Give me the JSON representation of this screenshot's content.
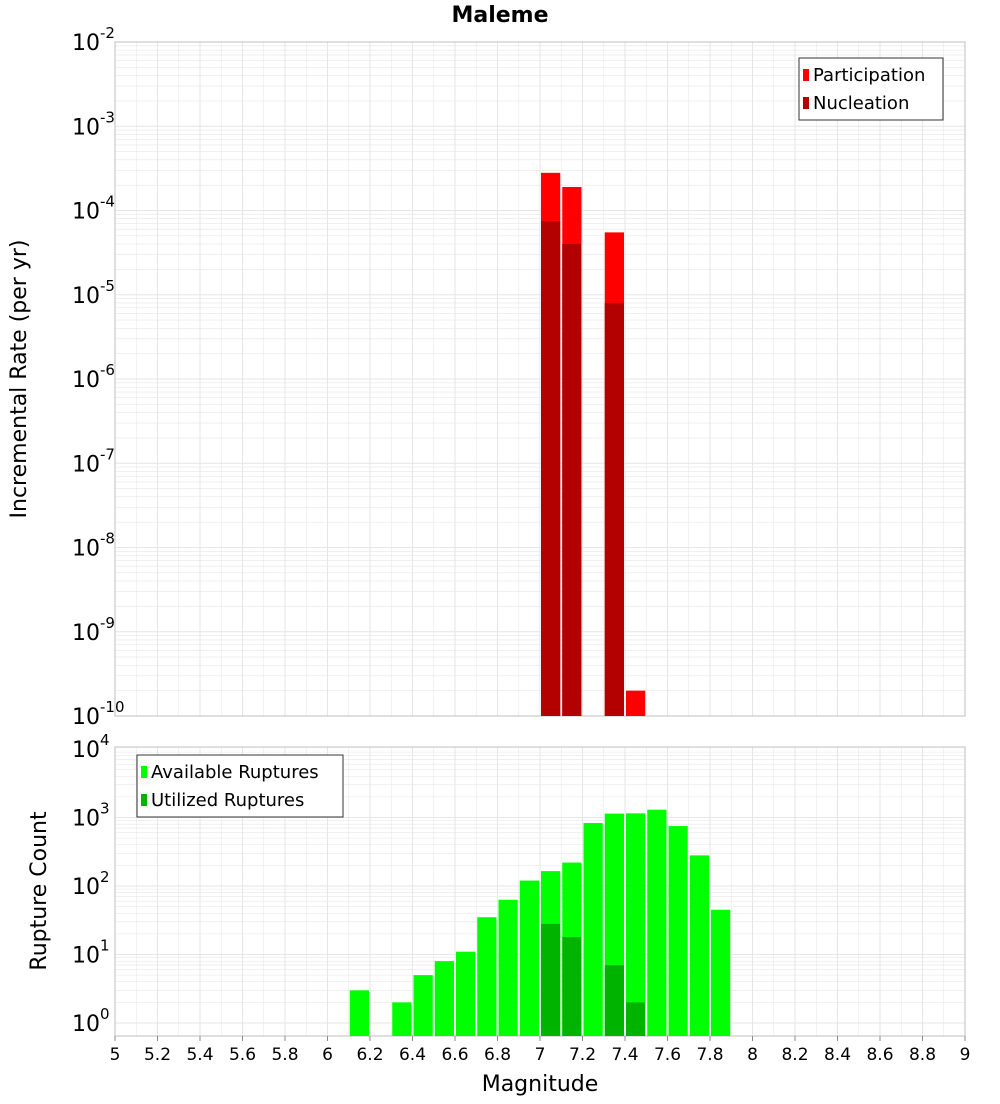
{
  "title": "Maleme",
  "colors": {
    "participation": "#ff0000",
    "nucleation": "#b30000",
    "available": "#00ff00",
    "utilized": "#00b300",
    "grid": "#e6e6e6",
    "frame": "#bfbfbf"
  },
  "chart_data": [
    {
      "type": "bar",
      "scale": "log",
      "ylabel": "Incremental Rate (per yr)",
      "ylim_exponents": [
        -10,
        -2
      ],
      "grid": true,
      "legend_position": "top-right",
      "x": [
        7.05,
        7.15,
        7.35,
        7.45
      ],
      "series": [
        {
          "name": "Participation",
          "values": [
            0.00028,
            0.00019,
            5.5e-05,
            2e-10
          ]
        },
        {
          "name": "Nucleation",
          "values": [
            7.5e-05,
            4e-05,
            8e-06,
            null
          ]
        }
      ]
    },
    {
      "type": "bar",
      "scale": "log",
      "ylabel": "Rupture Count",
      "xlabel": "Magnitude",
      "xlim": [
        5,
        9
      ],
      "ylim_exponents": [
        0,
        4
      ],
      "grid": true,
      "legend_position": "top-left",
      "x_ticks": [
        "5",
        "5.2",
        "5.4",
        "5.6",
        "5.8",
        "6",
        "6.2",
        "6.4",
        "6.6",
        "6.8",
        "7",
        "7.2",
        "7.4",
        "7.6",
        "7.8",
        "8",
        "8.2",
        "8.4",
        "8.6",
        "8.8",
        "9"
      ],
      "x": [
        6.15,
        6.35,
        6.45,
        6.55,
        6.65,
        6.75,
        6.85,
        6.95,
        7.05,
        7.15,
        7.25,
        7.35,
        7.45,
        7.55,
        7.65,
        7.75,
        7.85
      ],
      "series": [
        {
          "name": "Available Ruptures",
          "values": [
            3,
            2,
            5,
            8,
            11,
            35,
            63,
            120,
            165,
            220,
            830,
            1140,
            1150,
            1300,
            750,
            280,
            45
          ]
        },
        {
          "name": "Utilized Ruptures",
          "values": [
            null,
            null,
            null,
            null,
            null,
            null,
            null,
            null,
            28,
            18,
            null,
            7,
            2,
            null,
            null,
            null,
            null
          ]
        }
      ]
    }
  ]
}
